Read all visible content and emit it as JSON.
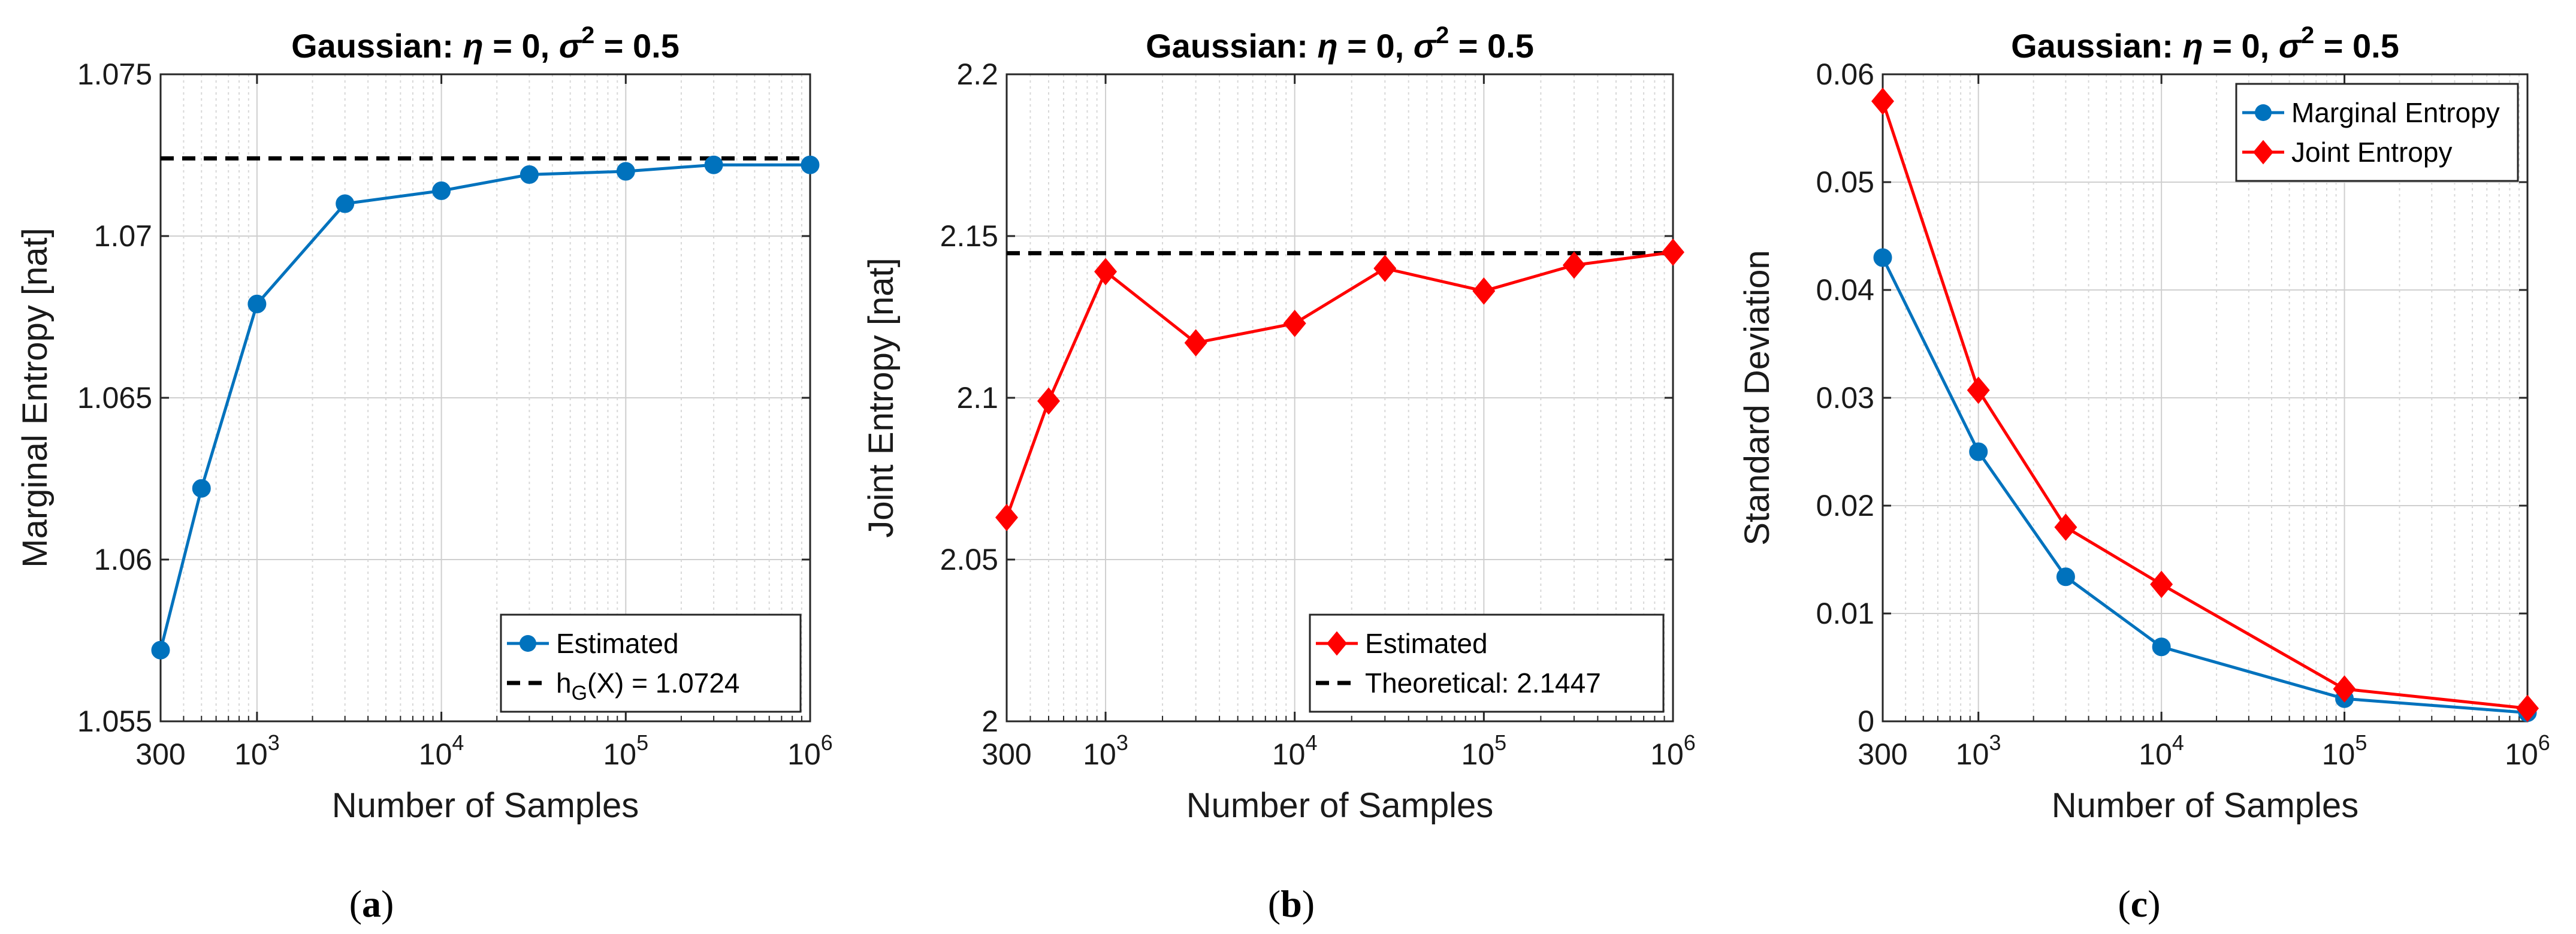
{
  "chart_data": [
    {
      "id": "a",
      "type": "line",
      "title_prefix": "Gaussian: ",
      "title_eta": "η",
      "title_mid": " = 0, ",
      "title_sigma": "σ",
      "title_sup": "2",
      "title_suffix": " = 0.5",
      "xlabel": "Number of Samples",
      "ylabel": "Marginal Entropy [nat]",
      "xscale": "log",
      "xlim": [
        300,
        1000000
      ],
      "ylim": [
        1.055,
        1.075
      ],
      "yticks": [
        1.055,
        1.06,
        1.065,
        1.07,
        1.075
      ],
      "ytick_labels": [
        "1.055",
        "1.06",
        "1.065",
        "1.07",
        "1.075"
      ],
      "xticks": [
        {
          "value": 300,
          "base": "300",
          "exp": ""
        },
        {
          "value": 1000,
          "base": "10",
          "exp": "3"
        },
        {
          "value": 10000,
          "base": "10",
          "exp": "4"
        },
        {
          "value": 100000,
          "base": "10",
          "exp": "5"
        },
        {
          "value": 1000000,
          "base": "10",
          "exp": "6"
        }
      ],
      "series": [
        {
          "name": "Estimated",
          "color": "#0072BD",
          "marker": "circle",
          "x": [
            300,
            500,
            1000,
            3000,
            10000,
            30000,
            100000,
            300000,
            1000000
          ],
          "values": [
            1.0572,
            1.0622,
            1.0679,
            1.071,
            1.0714,
            1.0719,
            1.072,
            1.0722,
            1.0722
          ]
        }
      ],
      "reference_line": {
        "value": 1.0724,
        "style": "dashed",
        "color": "#000000"
      },
      "legend": {
        "position": "bottom-right",
        "entries": [
          {
            "label_main": "Estimated",
            "label_sub": "",
            "label_rest": "",
            "kind": "series"
          },
          {
            "label_main": "h",
            "label_sub": "G",
            "label_rest": "(X) = 1.0724",
            "kind": "reference"
          }
        ]
      },
      "caption_open": "(",
      "caption_letter": "a",
      "caption_close": ")"
    },
    {
      "id": "b",
      "type": "line",
      "title_prefix": "Gaussian: ",
      "title_eta": "η",
      "title_mid": " = 0, ",
      "title_sigma": "σ",
      "title_sup": "2",
      "title_suffix": " = 0.5",
      "xlabel": "Number of Samples",
      "ylabel": "Joint Entropy [nat]",
      "xscale": "log",
      "xlim": [
        300,
        1000000
      ],
      "ylim": [
        2.0,
        2.2
      ],
      "yticks": [
        2.0,
        2.05,
        2.1,
        2.15,
        2.2
      ],
      "ytick_labels": [
        "2",
        "2.05",
        "2.1",
        "2.15",
        "2.2"
      ],
      "xticks": [
        {
          "value": 300,
          "base": "300",
          "exp": ""
        },
        {
          "value": 1000,
          "base": "10",
          "exp": "3"
        },
        {
          "value": 10000,
          "base": "10",
          "exp": "4"
        },
        {
          "value": 100000,
          "base": "10",
          "exp": "5"
        },
        {
          "value": 1000000,
          "base": "10",
          "exp": "6"
        }
      ],
      "series": [
        {
          "name": "Estimated",
          "color": "#FF0000",
          "marker": "diamond",
          "x": [
            300,
            500,
            1000,
            3000,
            10000,
            30000,
            100000,
            300000,
            1000000
          ],
          "values": [
            2.063,
            2.099,
            2.139,
            2.117,
            2.123,
            2.14,
            2.133,
            2.141,
            2.145
          ]
        }
      ],
      "reference_line": {
        "value": 2.1447,
        "style": "dashed",
        "color": "#000000"
      },
      "legend": {
        "position": "bottom-right",
        "entries": [
          {
            "label_main": "Estimated",
            "label_sub": "",
            "label_rest": "",
            "kind": "series"
          },
          {
            "label_main": "Theoretical: 2.1447",
            "label_sub": "",
            "label_rest": "",
            "kind": "reference"
          }
        ]
      },
      "caption_open": "(",
      "caption_letter": "b",
      "caption_close": ")"
    },
    {
      "id": "c",
      "type": "line",
      "title_prefix": "Gaussian: ",
      "title_eta": "η",
      "title_mid": " = 0, ",
      "title_sigma": "σ",
      "title_sup": "2",
      "title_suffix": " = 0.5",
      "xlabel": "Number of Samples",
      "ylabel": "Standard Deviation",
      "xscale": "log",
      "xlim": [
        300,
        1000000
      ],
      "ylim": [
        0,
        0.06
      ],
      "yticks": [
        0,
        0.01,
        0.02,
        0.03,
        0.04,
        0.05,
        0.06
      ],
      "ytick_labels": [
        "0",
        "0.01",
        "0.02",
        "0.03",
        "0.04",
        "0.05",
        "0.06"
      ],
      "xticks": [
        {
          "value": 300,
          "base": "300",
          "exp": ""
        },
        {
          "value": 1000,
          "base": "10",
          "exp": "3"
        },
        {
          "value": 10000,
          "base": "10",
          "exp": "4"
        },
        {
          "value": 100000,
          "base": "10",
          "exp": "5"
        },
        {
          "value": 1000000,
          "base": "10",
          "exp": "6"
        }
      ],
      "series": [
        {
          "name": "Marginal Entropy",
          "color": "#0072BD",
          "marker": "circle",
          "x": [
            300,
            1000,
            3000,
            10000,
            100000,
            1000000
          ],
          "values": [
            0.043,
            0.025,
            0.0134,
            0.0069,
            0.0021,
            0.0008
          ]
        },
        {
          "name": "Joint Entropy",
          "color": "#FF0000",
          "marker": "diamond",
          "x": [
            300,
            1000,
            3000,
            10000,
            100000,
            1000000
          ],
          "values": [
            0.0575,
            0.0307,
            0.018,
            0.0127,
            0.003,
            0.0012
          ]
        }
      ],
      "reference_line": null,
      "legend": {
        "position": "top-right",
        "entries": [
          {
            "label_main": "Marginal Entropy",
            "label_sub": "",
            "label_rest": "",
            "kind": "series"
          },
          {
            "label_main": "Joint Entropy",
            "label_sub": "",
            "label_rest": "",
            "kind": "series"
          }
        ]
      },
      "caption_open": "(",
      "caption_letter": "c",
      "caption_close": ")"
    }
  ]
}
